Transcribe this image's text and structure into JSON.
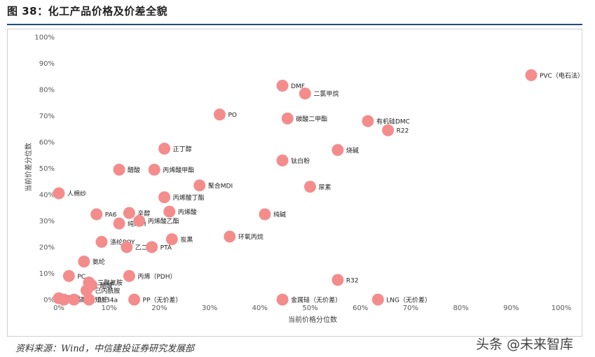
{
  "title": "图 38：化工产品价格及价差全貌",
  "source": "资料来源：Wind，中信建投证券研究发展部",
  "watermark": "头条 @未来智库",
  "colors": {
    "point": "#f48c8c",
    "title_rule": "#1f4e79",
    "grid": "#d9d9d9",
    "tick_text": "#595959"
  },
  "chart_data": {
    "type": "scatter",
    "title": "",
    "xlabel": "当前价格分位数",
    "ylabel": "当前价差分位数",
    "xlim": [
      0,
      100
    ],
    "ylim": [
      0,
      100
    ],
    "xticks": [
      "0%",
      "10%",
      "20%",
      "30%",
      "40%",
      "50%",
      "60%",
      "70%",
      "80%",
      "90%",
      "100%"
    ],
    "yticks": [
      "0%",
      "10%",
      "20%",
      "30%",
      "40%",
      "50%",
      "60%",
      "70%",
      "80%",
      "90%",
      "100%"
    ],
    "grid": false,
    "points": [
      {
        "label": "PVC（电石法）",
        "x": 94,
        "y": 85.5
      },
      {
        "label": "DMF",
        "x": 44.5,
        "y": 81.5
      },
      {
        "label": "二氯甲烷",
        "x": 49,
        "y": 78.5
      },
      {
        "label": "PO",
        "x": 32,
        "y": 70.5
      },
      {
        "label": "碳酸二甲酯",
        "x": 45.5,
        "y": 69
      },
      {
        "label": "有机硅DMC",
        "x": 61.5,
        "y": 68
      },
      {
        "label": "R22",
        "x": 65.5,
        "y": 64.5
      },
      {
        "label": "正丁醇",
        "x": 21,
        "y": 57.5
      },
      {
        "label": "烧碱",
        "x": 55.5,
        "y": 57
      },
      {
        "label": "钛白粉",
        "x": 44.5,
        "y": 53
      },
      {
        "label": "醋酸",
        "x": 12,
        "y": 49.5
      },
      {
        "label": "丙烯酸甲酯",
        "x": 19,
        "y": 49.5
      },
      {
        "label": "聚合MDI",
        "x": 28,
        "y": 43.5
      },
      {
        "label": "尿素",
        "x": 50,
        "y": 43
      },
      {
        "label": "人棉纱",
        "x": 0,
        "y": 40.5
      },
      {
        "label": "丙烯酸丁酯",
        "x": 21,
        "y": 39
      },
      {
        "label": "PA6",
        "x": 7.5,
        "y": 32.5
      },
      {
        "label": "辛醇",
        "x": 14,
        "y": 33
      },
      {
        "label": "丙烯酸",
        "x": 22,
        "y": 33.5
      },
      {
        "label": "纯碱",
        "x": 41,
        "y": 32.5
      },
      {
        "label": "纯MDI",
        "x": 12,
        "y": 29
      },
      {
        "label": "丙烯酸乙酯",
        "x": 16,
        "y": 30
      },
      {
        "label": "涤纶POY",
        "x": 8.5,
        "y": 22
      },
      {
        "label": "乙二醇",
        "x": 13.5,
        "y": 20
      },
      {
        "label": "PTA",
        "x": 18.5,
        "y": 20
      },
      {
        "label": "炭黑",
        "x": 22.5,
        "y": 23
      },
      {
        "label": "环氧丙烷",
        "x": 34,
        "y": 24
      },
      {
        "label": "氨纶",
        "x": 5,
        "y": 14.5
      },
      {
        "label": "PC",
        "x": 2,
        "y": 9
      },
      {
        "label": "丙烯（PDH）",
        "x": 14,
        "y": 9
      },
      {
        "label": "三聚氰胺",
        "x": 6,
        "y": 6.5
      },
      {
        "label": "醋酸",
        "x": 6.5,
        "y": 5.5
      },
      {
        "label": "己内酰胺",
        "x": 5.5,
        "y": 3.5
      },
      {
        "label": "R32",
        "x": 55.5,
        "y": 7.5
      },
      {
        "label": "硝酸",
        "x": 0,
        "y": 0.5
      },
      {
        "label": "黄磷",
        "x": 1,
        "y": 0
      },
      {
        "label": "粘胶短纤",
        "x": 3,
        "y": 0
      },
      {
        "label": "R134a",
        "x": 6,
        "y": 0
      },
      {
        "label": "PP（无价差）",
        "x": 15,
        "y": 0
      },
      {
        "label": "金属硅（无价差）",
        "x": 44.5,
        "y": 0
      },
      {
        "label": "LNG（无价差）",
        "x": 63.5,
        "y": 0
      }
    ]
  }
}
